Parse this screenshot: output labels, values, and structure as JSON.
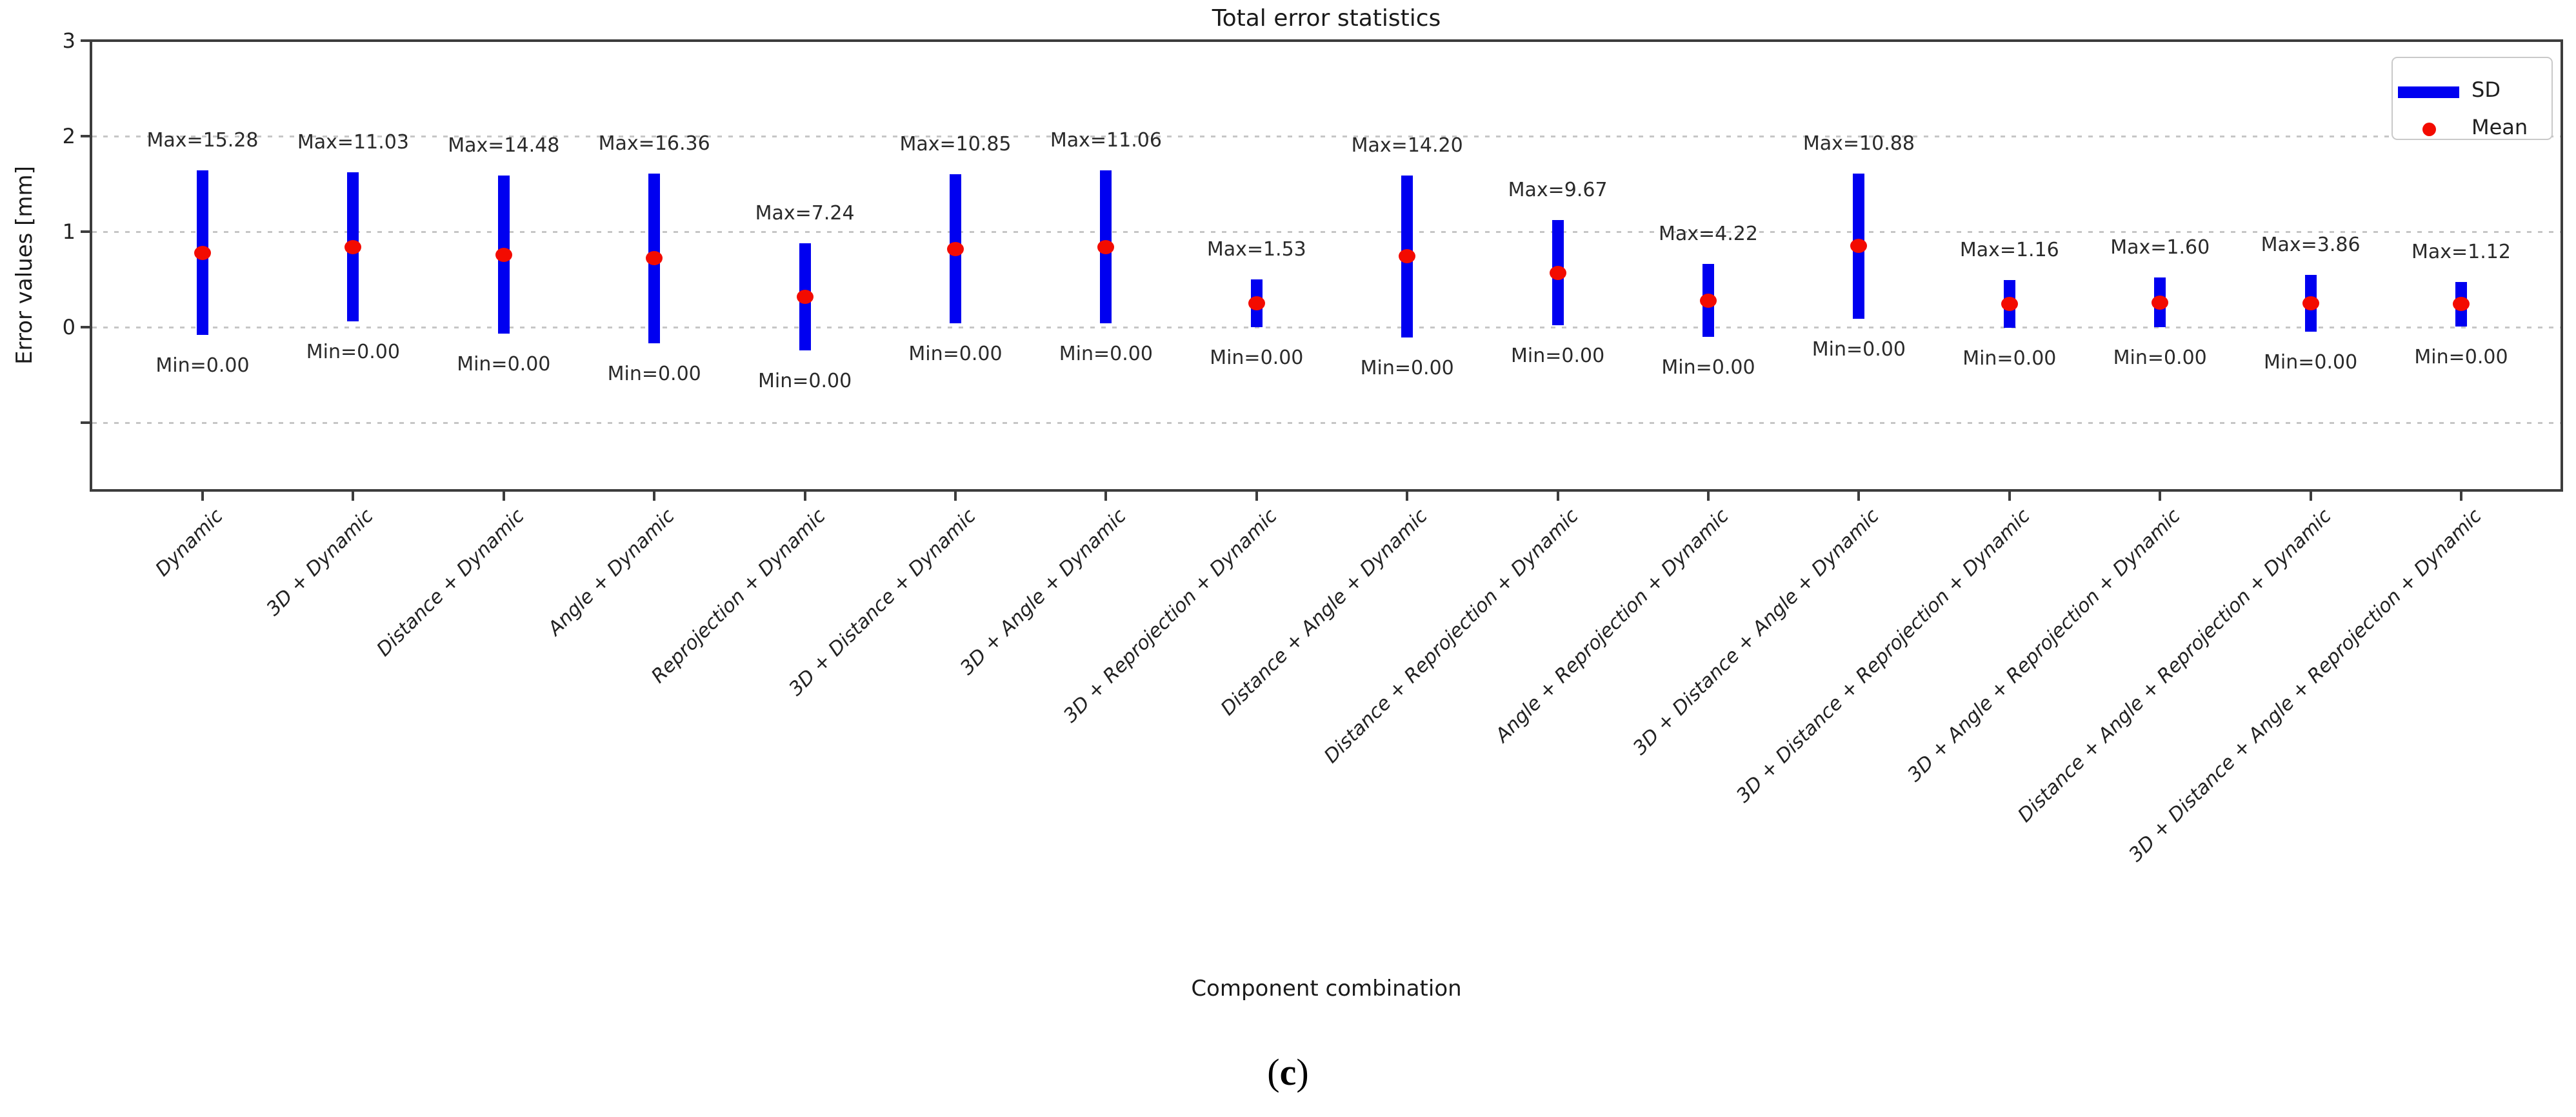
{
  "figure": {
    "title": "Total error statistics",
    "xlabel": "Component combination",
    "ylabel": "Error values [mm]",
    "caption": "(c)"
  },
  "legend": {
    "items": [
      {
        "label": "SD",
        "swatch": "blue-line"
      },
      {
        "label": "Mean",
        "swatch": "red-dot"
      }
    ]
  },
  "colors": {
    "sd_bar": "#0000f0",
    "mean_dot": "#f30b00",
    "gridline": "#c6c6c6",
    "spine": "#3d3d3d",
    "text": "#1f1f1f"
  },
  "chart_data": {
    "type": "bar",
    "subtype": "errorbar-mean-sd",
    "title": "Total error statistics",
    "xlabel": "Component combination",
    "ylabel": "Error values [mm]",
    "caption": "(c)",
    "ylim": [
      -1.72,
      3
    ],
    "ytick_labels": [
      "3",
      "2",
      "1",
      "0"
    ],
    "ytick_values": [
      3,
      2,
      1,
      0
    ],
    "unlabeled_tick_values": [
      -1
    ],
    "gridline_values": [
      2,
      1,
      0,
      -1
    ],
    "grid": true,
    "legend_position": "upper right",
    "x_tick_rotation": 45,
    "categories": [
      "Dynamic",
      "3D + Dynamic",
      "Distance + Dynamic",
      "Angle + Dynamic",
      "Reprojection + Dynamic",
      "3D + Distance + Dynamic",
      "3D + Angle + Dynamic",
      "3D + Reprojection + Dynamic",
      "Distance + Angle + Dynamic",
      "Distance + Reprojection + Dynamic",
      "Angle + Reprojection + Dynamic",
      "3D + Distance + Angle + Dynamic",
      "3D + Distance + Reprojection + Dynamic",
      "3D + Angle + Reprojection + Dynamic",
      "Distance + Angle + Reprojection + Dynamic",
      "3D + Distance + Angle + Reprojection + Dynamic"
    ],
    "series": [
      {
        "name": "SD",
        "meaning": "vertical bar spanning mean - SD to mean + SD",
        "sds": [
          0.86,
          0.78,
          0.83,
          0.89,
          0.56,
          0.78,
          0.8,
          0.25,
          0.85,
          0.55,
          0.38,
          0.76,
          0.25,
          0.26,
          0.3,
          0.23
        ]
      },
      {
        "name": "Mean",
        "meaning": "red dot at mean value",
        "values": [
          0.78,
          0.84,
          0.76,
          0.72,
          0.32,
          0.82,
          0.84,
          0.25,
          0.74,
          0.57,
          0.28,
          0.85,
          0.24,
          0.26,
          0.25,
          0.24
        ]
      }
    ],
    "points": [
      {
        "category": "Dynamic",
        "mean": 0.78,
        "sd": 0.86,
        "max": 15.28,
        "min": 0.0,
        "max_label": "Max=15.28",
        "min_label": "Min=0.00"
      },
      {
        "category": "3D + Dynamic",
        "mean": 0.84,
        "sd": 0.78,
        "max": 11.03,
        "min": 0.0,
        "max_label": "Max=11.03",
        "min_label": "Min=0.00"
      },
      {
        "category": "Distance + Dynamic",
        "mean": 0.76,
        "sd": 0.83,
        "max": 14.48,
        "min": 0.0,
        "max_label": "Max=14.48",
        "min_label": "Min=0.00"
      },
      {
        "category": "Angle + Dynamic",
        "mean": 0.72,
        "sd": 0.89,
        "max": 16.36,
        "min": 0.0,
        "max_label": "Max=16.36",
        "min_label": "Min=0.00"
      },
      {
        "category": "Reprojection + Dynamic",
        "mean": 0.32,
        "sd": 0.56,
        "max": 7.24,
        "min": 0.0,
        "max_label": "Max=7.24",
        "min_label": "Min=0.00"
      },
      {
        "category": "3D + Distance + Dynamic",
        "mean": 0.82,
        "sd": 0.78,
        "max": 10.85,
        "min": 0.0,
        "max_label": "Max=10.85",
        "min_label": "Min=0.00"
      },
      {
        "category": "3D + Angle + Dynamic",
        "mean": 0.84,
        "sd": 0.8,
        "max": 11.06,
        "min": 0.0,
        "max_label": "Max=11.06",
        "min_label": "Min=0.00"
      },
      {
        "category": "3D + Reprojection + Dynamic",
        "mean": 0.25,
        "sd": 0.25,
        "max": 1.53,
        "min": 0.0,
        "max_label": "Max=1.53",
        "min_label": "Min=0.00"
      },
      {
        "category": "Distance + Angle + Dynamic",
        "mean": 0.74,
        "sd": 0.85,
        "max": 14.2,
        "min": 0.0,
        "max_label": "Max=14.20",
        "min_label": "Min=0.00"
      },
      {
        "category": "Distance + Reprojection + Dynamic",
        "mean": 0.57,
        "sd": 0.55,
        "max": 9.67,
        "min": 0.0,
        "max_label": "Max=9.67",
        "min_label": "Min=0.00"
      },
      {
        "category": "Angle + Reprojection + Dynamic",
        "mean": 0.28,
        "sd": 0.38,
        "max": 4.22,
        "min": 0.0,
        "max_label": "Max=4.22",
        "min_label": "Min=0.00"
      },
      {
        "category": "3D + Distance + Angle + Dynamic",
        "mean": 0.85,
        "sd": 0.76,
        "max": 10.88,
        "min": 0.0,
        "max_label": "Max=10.88",
        "min_label": "Min=0.00"
      },
      {
        "category": "3D + Distance + Reprojection + Dynamic",
        "mean": 0.24,
        "sd": 0.25,
        "max": 1.16,
        "min": 0.0,
        "max_label": "Max=1.16",
        "min_label": "Min=0.00"
      },
      {
        "category": "3D + Angle + Reprojection + Dynamic",
        "mean": 0.26,
        "sd": 0.26,
        "max": 1.6,
        "min": 0.0,
        "max_label": "Max=1.60",
        "min_label": "Min=0.00"
      },
      {
        "category": "Distance + Angle + Reprojection + Dynamic",
        "mean": 0.25,
        "sd": 0.3,
        "max": 3.86,
        "min": 0.0,
        "max_label": "Max=3.86",
        "min_label": "Min=0.00"
      },
      {
        "category": "3D + Distance + Angle + Reprojection + Dynamic",
        "mean": 0.24,
        "sd": 0.23,
        "max": 1.12,
        "min": 0.0,
        "max_label": "Max=1.12",
        "min_label": "Min=0.00"
      }
    ]
  }
}
